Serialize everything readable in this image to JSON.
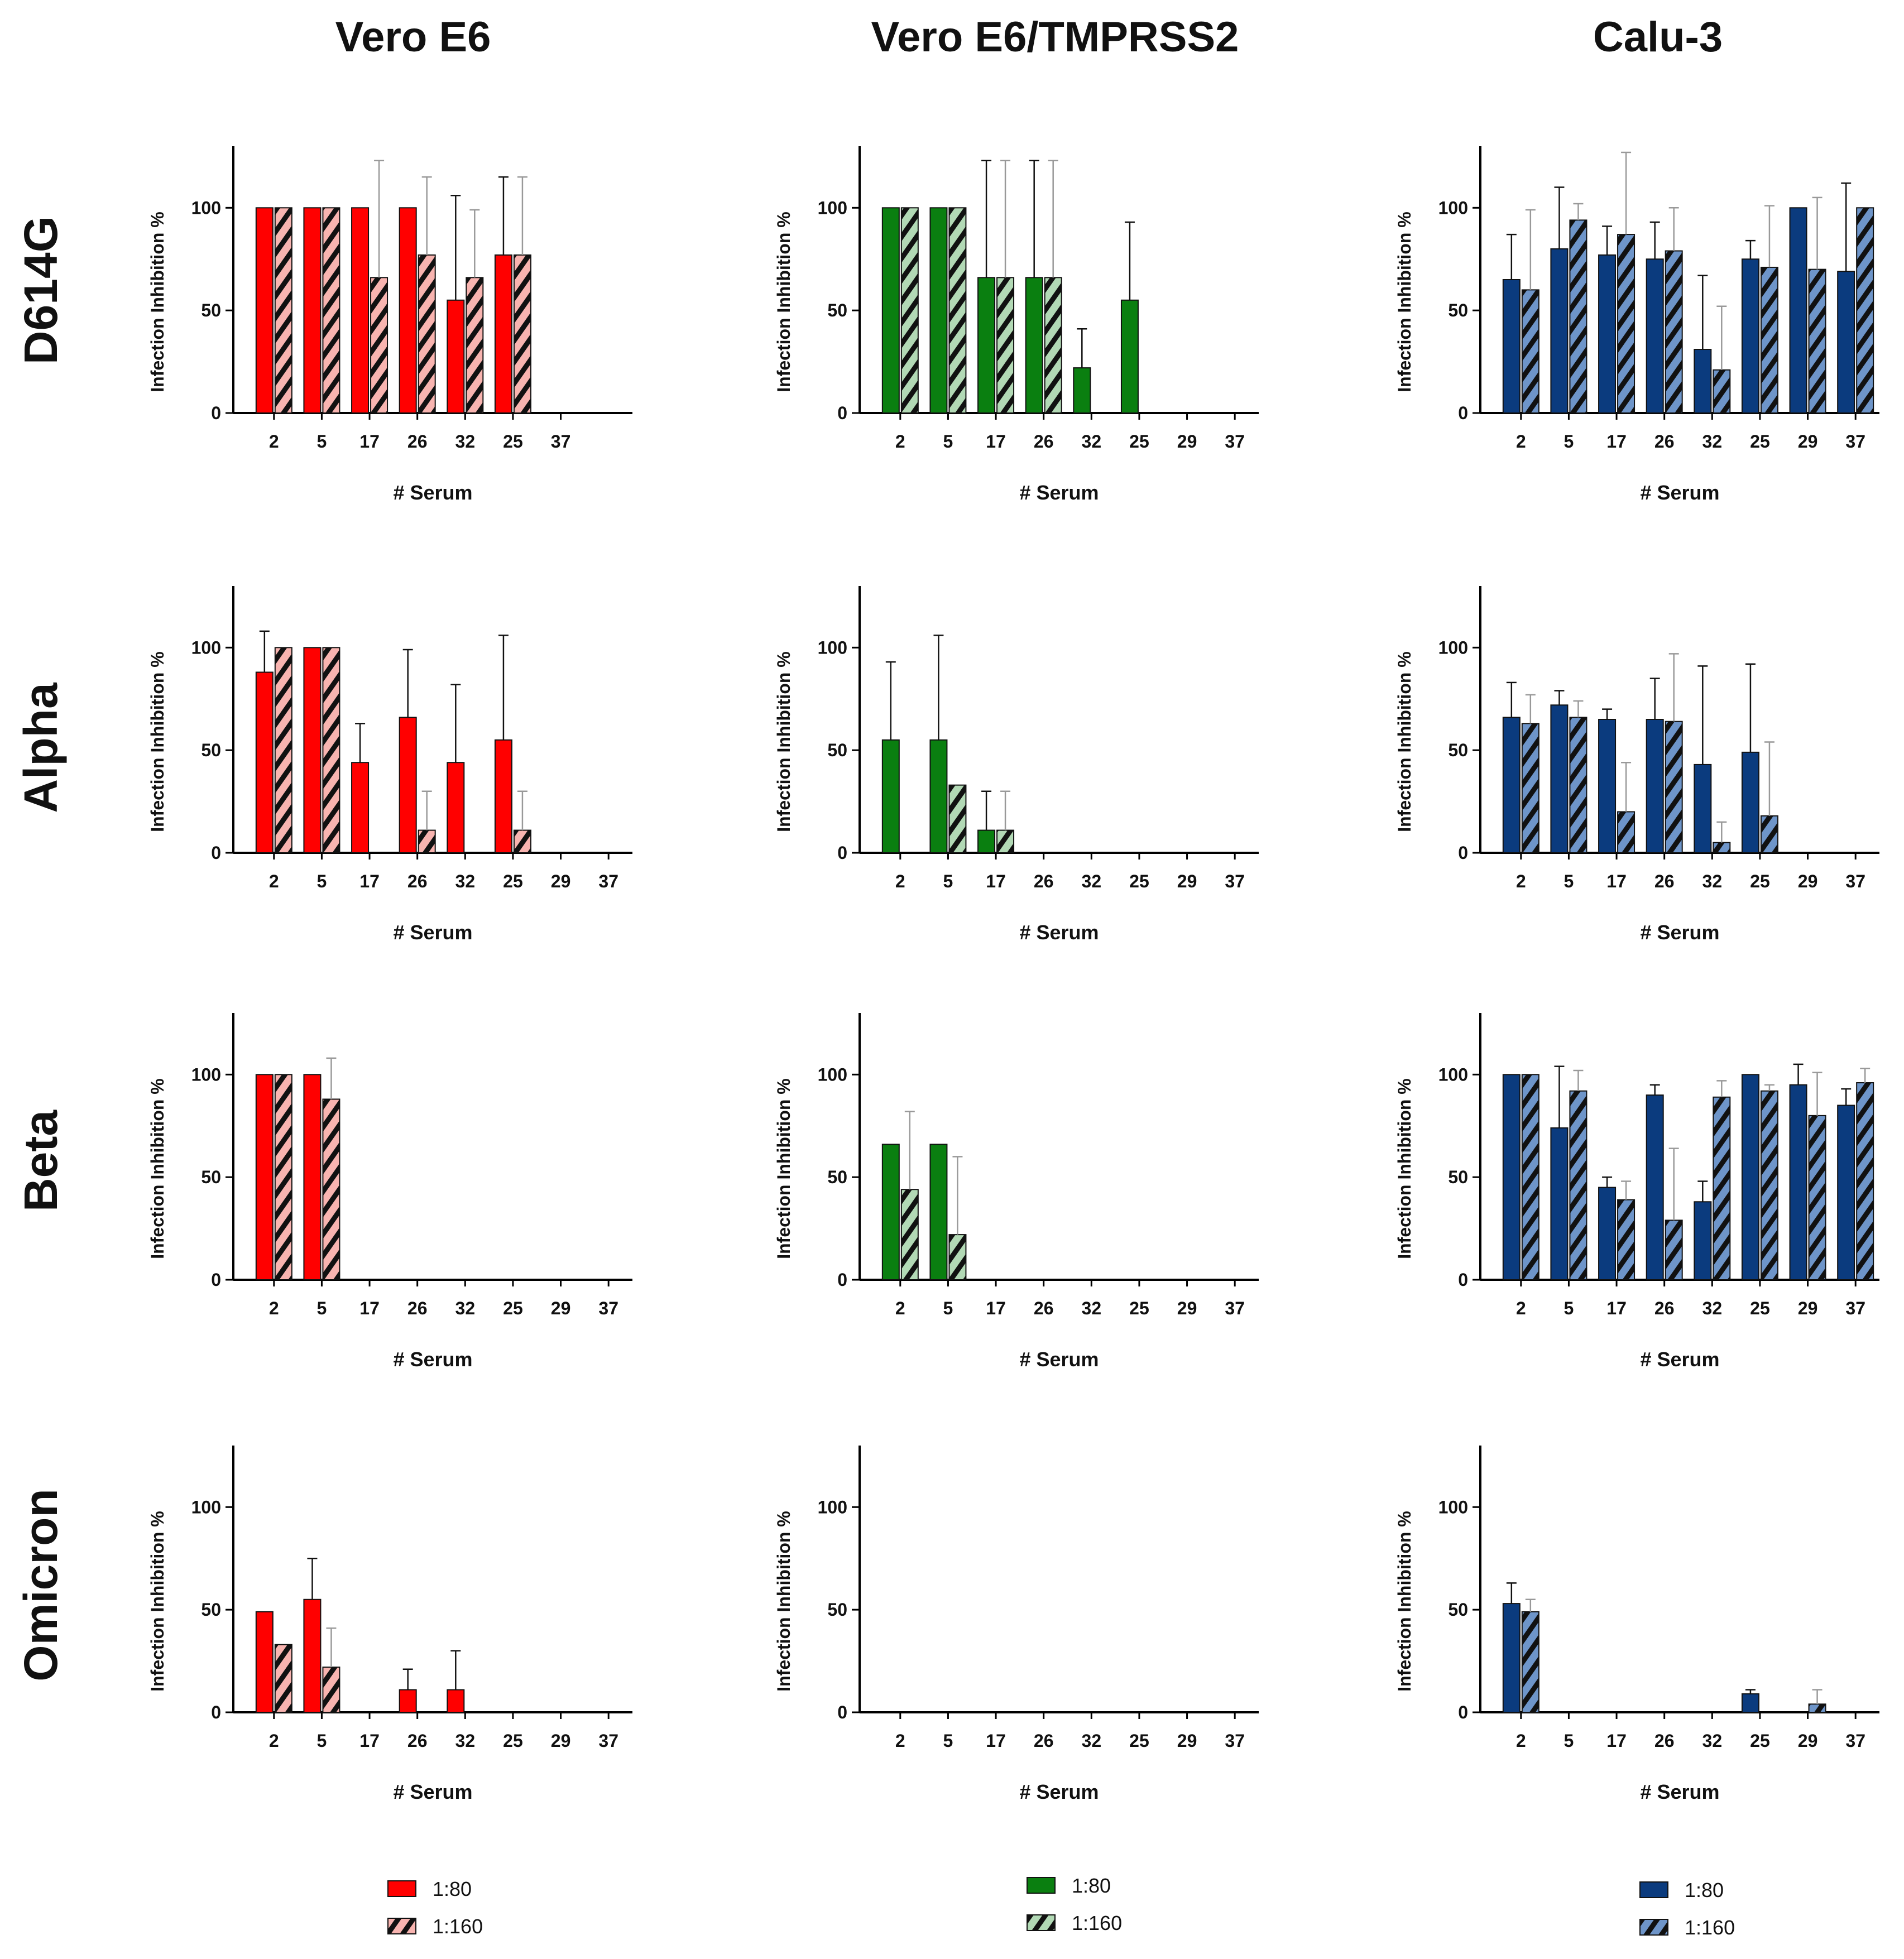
{
  "column_titles": [
    "Vero E6",
    "Vero E6/TMPRSS2",
    "Calu-3"
  ],
  "row_titles": [
    "D614G",
    "Alpha",
    "Beta",
    "Omicron"
  ],
  "colors": {
    "vero_solid": "#ff0000",
    "vero_hatch": "#f8b4b0",
    "tmprss_solid": "#0a7f10",
    "tmprss_hatch": "#b2d9b5",
    "calu_solid": "#0b3b7e",
    "calu_hatch": "#6e95c9"
  },
  "chart_data": [
    {
      "type": "bar",
      "cell": "D614G-Vero E6",
      "categories": [
        "2",
        "5",
        "17",
        "26",
        "32",
        "25",
        "37"
      ],
      "xlabel": "# Serum",
      "ylabel": "Infection Inhibition %",
      "ylim": [
        0,
        130
      ],
      "yticks": [
        0,
        50,
        100
      ],
      "series": [
        {
          "name": "1:80",
          "values": [
            100,
            100,
            100,
            100,
            55,
            77,
            0
          ],
          "errors": [
            0,
            0,
            0,
            0,
            51,
            38,
            0
          ]
        },
        {
          "name": "1:160",
          "values": [
            100,
            100,
            66,
            77,
            66,
            77,
            0
          ],
          "errors": [
            0,
            0,
            57,
            38,
            33,
            38,
            0
          ]
        }
      ]
    },
    {
      "type": "bar",
      "cell": "D614G-Vero E6/TMPRSS2",
      "categories": [
        "2",
        "5",
        "17",
        "26",
        "32",
        "25",
        "29",
        "37"
      ],
      "xlabel": "# Serum",
      "ylabel": "Infection Inhibition %",
      "ylim": [
        0,
        130
      ],
      "yticks": [
        0,
        50,
        100
      ],
      "series": [
        {
          "name": "1:80",
          "values": [
            100,
            100,
            66,
            66,
            22,
            55,
            0,
            0
          ],
          "errors": [
            0,
            0,
            57,
            57,
            19,
            38,
            0,
            0
          ]
        },
        {
          "name": "1:160",
          "values": [
            100,
            100,
            66,
            66,
            0,
            0,
            0,
            0
          ],
          "errors": [
            0,
            0,
            57,
            57,
            0,
            0,
            0,
            0
          ]
        }
      ]
    },
    {
      "type": "bar",
      "cell": "D614G-Calu-3",
      "categories": [
        "2",
        "5",
        "17",
        "26",
        "32",
        "25",
        "29",
        "37"
      ],
      "xlabel": "# Serum",
      "ylabel": "Infection Inhibition %",
      "ylim": [
        0,
        130
      ],
      "yticks": [
        0,
        50,
        100
      ],
      "series": [
        {
          "name": "1:80",
          "values": [
            65,
            80,
            77,
            75,
            31,
            75,
            100,
            69
          ],
          "errors": [
            22,
            30,
            14,
            18,
            36,
            9,
            0,
            43
          ]
        },
        {
          "name": "1:160",
          "values": [
            60,
            94,
            87,
            79,
            21,
            71,
            70,
            100
          ],
          "errors": [
            39,
            8,
            40,
            21,
            31,
            30,
            35,
            0
          ]
        }
      ]
    },
    {
      "type": "bar",
      "cell": "Alpha-Vero E6",
      "categories": [
        "2",
        "5",
        "17",
        "26",
        "32",
        "25",
        "29",
        "37"
      ],
      "xlabel": "# Serum",
      "ylabel": "Infection Inhibition %",
      "ylim": [
        0,
        130
      ],
      "yticks": [
        0,
        50,
        100
      ],
      "series": [
        {
          "name": "1:80",
          "values": [
            88,
            100,
            44,
            66,
            44,
            55,
            0,
            0
          ],
          "errors": [
            20,
            0,
            19,
            33,
            38,
            51,
            0,
            0
          ]
        },
        {
          "name": "1:160",
          "values": [
            100,
            100,
            0,
            11,
            0,
            11,
            0,
            0
          ],
          "errors": [
            0,
            0,
            0,
            19,
            0,
            19,
            0,
            0
          ]
        }
      ]
    },
    {
      "type": "bar",
      "cell": "Alpha-Vero E6/TMPRSS2",
      "categories": [
        "2",
        "5",
        "17",
        "26",
        "32",
        "25",
        "29",
        "37"
      ],
      "xlabel": "# Serum",
      "ylabel": "Infection Inhibition %",
      "ylim": [
        0,
        130
      ],
      "yticks": [
        0,
        50,
        100
      ],
      "series": [
        {
          "name": "1:80",
          "values": [
            55,
            55,
            11,
            0,
            0,
            0,
            0,
            0
          ],
          "errors": [
            38,
            51,
            19,
            0,
            0,
            0,
            0,
            0
          ]
        },
        {
          "name": "1:160",
          "values": [
            0,
            33,
            11,
            0,
            0,
            0,
            0,
            0
          ],
          "errors": [
            0,
            0,
            19,
            0,
            0,
            0,
            0,
            0
          ]
        }
      ]
    },
    {
      "type": "bar",
      "cell": "Alpha-Calu-3",
      "categories": [
        "2",
        "5",
        "17",
        "26",
        "32",
        "25",
        "29",
        "37"
      ],
      "xlabel": "# Serum",
      "ylabel": "Infection Inhibition %",
      "ylim": [
        0,
        130
      ],
      "yticks": [
        0,
        50,
        100
      ],
      "series": [
        {
          "name": "1:80",
          "values": [
            66,
            72,
            65,
            65,
            43,
            49,
            0,
            0
          ],
          "errors": [
            17,
            7,
            5,
            20,
            48,
            43,
            0,
            0
          ]
        },
        {
          "name": "1:160",
          "values": [
            63,
            66,
            20,
            64,
            5,
            18,
            0,
            0
          ],
          "errors": [
            14,
            8,
            24,
            33,
            10,
            36,
            0,
            0
          ]
        }
      ]
    },
    {
      "type": "bar",
      "cell": "Beta-Vero E6",
      "categories": [
        "2",
        "5",
        "17",
        "26",
        "32",
        "25",
        "29",
        "37"
      ],
      "xlabel": "# Serum",
      "ylabel": "Infection Inhibition %",
      "ylim": [
        0,
        130
      ],
      "yticks": [
        0,
        50,
        100
      ],
      "series": [
        {
          "name": "1:80",
          "values": [
            100,
            100,
            0,
            0,
            0,
            0,
            0,
            0
          ],
          "errors": [
            0,
            0,
            0,
            0,
            0,
            0,
            0,
            0
          ]
        },
        {
          "name": "1:160",
          "values": [
            100,
            88,
            0,
            0,
            0,
            0,
            0,
            0
          ],
          "errors": [
            0,
            20,
            0,
            0,
            0,
            0,
            0,
            0
          ]
        }
      ]
    },
    {
      "type": "bar",
      "cell": "Beta-Vero E6/TMPRSS2",
      "categories": [
        "2",
        "5",
        "17",
        "26",
        "32",
        "25",
        "29",
        "37"
      ],
      "xlabel": "# Serum",
      "ylabel": "Infection Inhibition %",
      "ylim": [
        0,
        130
      ],
      "yticks": [
        0,
        50,
        100
      ],
      "series": [
        {
          "name": "1:80",
          "values": [
            66,
            66,
            0,
            0,
            0,
            0,
            0,
            0
          ],
          "errors": [
            0,
            0,
            0,
            0,
            0,
            0,
            0,
            0
          ]
        },
        {
          "name": "1:160",
          "values": [
            44,
            22,
            0,
            0,
            0,
            0,
            0,
            0
          ],
          "errors": [
            38,
            38,
            0,
            0,
            0,
            0,
            0,
            0
          ]
        }
      ]
    },
    {
      "type": "bar",
      "cell": "Beta-Calu-3",
      "categories": [
        "2",
        "5",
        "17",
        "26",
        "32",
        "25",
        "29",
        "37"
      ],
      "xlabel": "# Serum",
      "ylabel": "Infection Inhibition %",
      "ylim": [
        0,
        130
      ],
      "yticks": [
        0,
        50,
        100
      ],
      "series": [
        {
          "name": "1:80",
          "values": [
            100,
            74,
            45,
            90,
            38,
            100,
            95,
            85
          ],
          "errors": [
            0,
            30,
            5,
            5,
            10,
            0,
            10,
            8
          ]
        },
        {
          "name": "1:160",
          "values": [
            100,
            92,
            39,
            29,
            89,
            92,
            80,
            96
          ],
          "errors": [
            0,
            10,
            9,
            35,
            8,
            3,
            21,
            7
          ]
        }
      ]
    },
    {
      "type": "bar",
      "cell": "Omicron-Vero E6",
      "categories": [
        "2",
        "5",
        "17",
        "26",
        "32",
        "25",
        "29",
        "37"
      ],
      "xlabel": "# Serum",
      "ylabel": "Infection Inhibition %",
      "ylim": [
        0,
        130
      ],
      "yticks": [
        0,
        50,
        100
      ],
      "series": [
        {
          "name": "1:80",
          "values": [
            49,
            55,
            0,
            11,
            11,
            0,
            0,
            0
          ],
          "errors": [
            0,
            20,
            0,
            10,
            19,
            0,
            0,
            0
          ]
        },
        {
          "name": "1:160",
          "values": [
            33,
            22,
            0,
            0,
            0,
            0,
            0,
            0
          ],
          "errors": [
            0,
            19,
            0,
            0,
            0,
            0,
            0,
            0
          ]
        }
      ]
    },
    {
      "type": "bar",
      "cell": "Omicron-Vero E6/TMPRSS2",
      "categories": [
        "2",
        "5",
        "17",
        "26",
        "32",
        "25",
        "29",
        "37"
      ],
      "xlabel": "# Serum",
      "ylabel": "Infection Inhibition %",
      "ylim": [
        0,
        130
      ],
      "yticks": [
        0,
        50,
        100
      ],
      "series": [
        {
          "name": "1:80",
          "values": [
            0,
            0,
            0,
            0,
            0,
            0,
            0,
            0
          ],
          "errors": [
            0,
            0,
            0,
            0,
            0,
            0,
            0,
            0
          ]
        },
        {
          "name": "1:160",
          "values": [
            0,
            0,
            0,
            0,
            0,
            0,
            0,
            0
          ],
          "errors": [
            0,
            0,
            0,
            0,
            0,
            0,
            0,
            0
          ]
        }
      ]
    },
    {
      "type": "bar",
      "cell": "Omicron-Calu-3",
      "categories": [
        "2",
        "5",
        "17",
        "26",
        "32",
        "25",
        "29",
        "37"
      ],
      "xlabel": "# Serum",
      "ylabel": "Infection Inhibition %",
      "ylim": [
        0,
        130
      ],
      "yticks": [
        0,
        50,
        100
      ],
      "series": [
        {
          "name": "1:80",
          "values": [
            53,
            0,
            0,
            0,
            0,
            9,
            0,
            0
          ],
          "errors": [
            10,
            0,
            0,
            0,
            0,
            2,
            0,
            0
          ]
        },
        {
          "name": "1:160",
          "values": [
            49,
            0,
            0,
            0,
            0,
            0,
            4,
            0
          ],
          "errors": [
            6,
            0,
            0,
            0,
            0,
            0,
            7,
            0
          ]
        }
      ]
    }
  ],
  "legends": [
    {
      "items": [
        "1:80",
        "1:160"
      ]
    },
    {
      "items": [
        "1:80",
        "1:160"
      ]
    },
    {
      "items": [
        "1:80",
        "1:160"
      ]
    }
  ]
}
